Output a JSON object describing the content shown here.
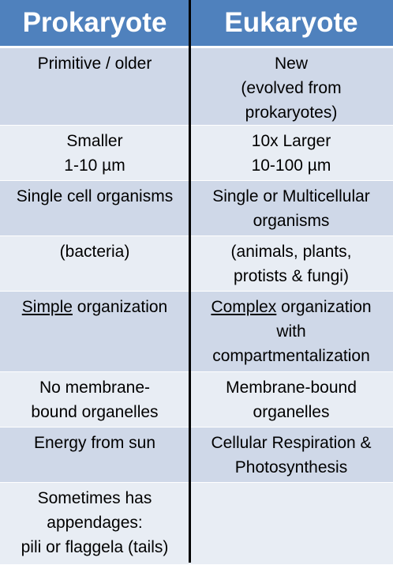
{
  "headers": {
    "left": "Prokaryote",
    "right": "Eukaryote"
  },
  "rows": [
    {
      "left": "Primitive / older",
      "right": "New\n(evolved from\nprokaryotes)"
    },
    {
      "left": "Smaller\n1-10 µm",
      "right": "10x Larger\n10-100 µm"
    },
    {
      "left": "Single cell organisms",
      "right": "Single or Multicellular\norganisms"
    },
    {
      "left": "(bacteria)",
      "right": "(animals, plants,\nprotists & fungi)"
    },
    {
      "left_underlined": "Simple",
      "left_rest": " organization",
      "right_underlined": "Complex",
      "right_rest": " organization\nwith\ncompartmentalization"
    },
    {
      "left": "No membrane-\nbound organelles",
      "right": "Membrane-bound\norganelles"
    },
    {
      "left": "Energy from sun",
      "right": "Cellular Respiration &\nPhotosynthesis"
    },
    {
      "left": "Sometimes has\nappendages:\npili or flaggela (tails)",
      "right": ""
    }
  ],
  "colors": {
    "header_bg": "#4f81bd",
    "row_dark": "#cfd8e8",
    "row_light": "#e8edf4",
    "divider": "#000000"
  }
}
